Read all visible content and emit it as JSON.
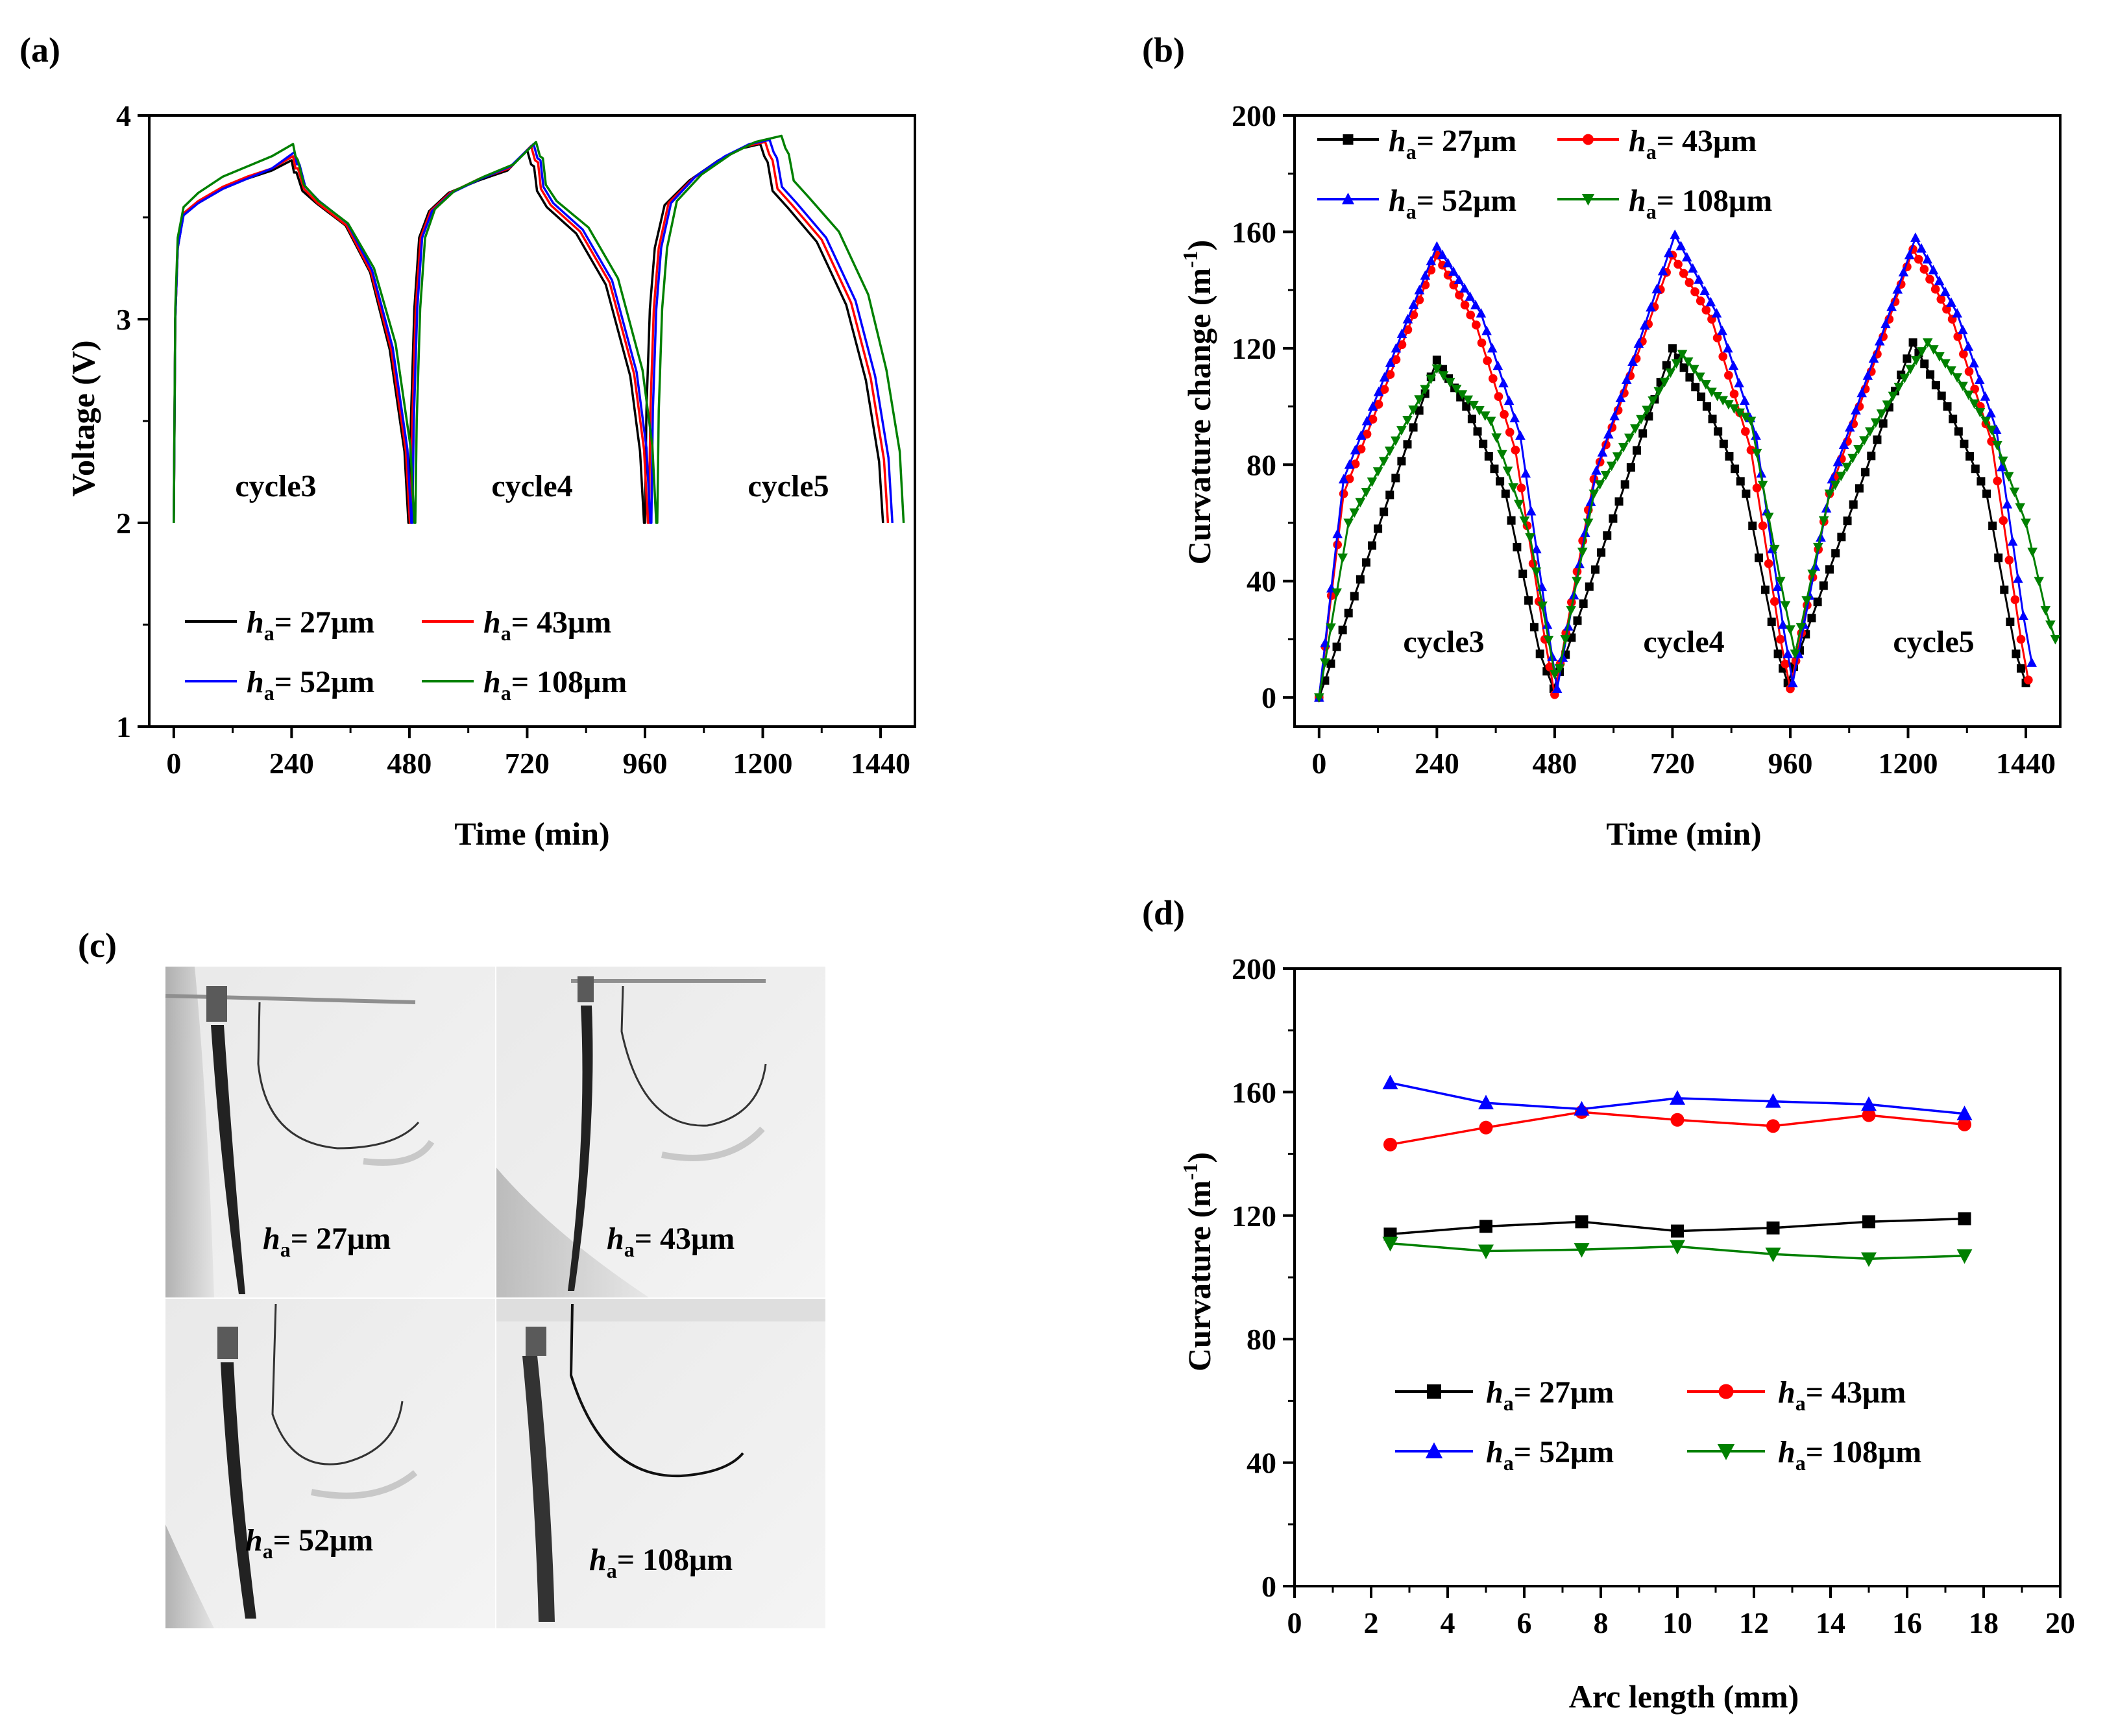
{
  "colors": {
    "h27": "#000000",
    "h43": "#ff0000",
    "h52": "#0000ff",
    "h108": "#008000"
  },
  "chart_data": [
    {
      "id": "a",
      "panel_label": "(a)",
      "type": "line",
      "xlabel": "Time (min)",
      "ylabel": "Voltage (V)",
      "xlim": [
        -50,
        1510
      ],
      "ylim": [
        1,
        4
      ],
      "xticks": [
        0,
        240,
        480,
        720,
        960,
        1200,
        1440
      ],
      "yticks": [
        1,
        2,
        3,
        4
      ],
      "annotations": [
        "cycle3",
        "cycle4",
        "cycle5"
      ],
      "series": [
        {
          "key": "h27",
          "name_prefix": "h",
          "name_sub": "a",
          "name_rest": "= 27μm",
          "color": "#000000",
          "x": [
            0,
            3,
            8,
            20,
            50,
            100,
            150,
            200,
            240,
            245,
            250,
            262,
            290,
            350,
            400,
            440,
            470,
            478,
            480,
            483,
            490,
            500,
            520,
            560,
            620,
            680,
            720,
            728,
            734,
            740,
            760,
            820,
            880,
            930,
            950,
            958,
            960,
            963,
            970,
            980,
            1000,
            1050,
            1110,
            1160,
            1195,
            1203,
            1210,
            1220,
            1250,
            1310,
            1370,
            1410,
            1437,
            1445
          ],
          "y": [
            2.0,
            3.0,
            3.35,
            3.52,
            3.57,
            3.64,
            3.69,
            3.73,
            3.78,
            3.72,
            3.72,
            3.63,
            3.57,
            3.46,
            3.23,
            2.85,
            2.35,
            2.0,
            2.0,
            2.5,
            3.05,
            3.4,
            3.53,
            3.62,
            3.68,
            3.73,
            3.83,
            3.76,
            3.75,
            3.63,
            3.55,
            3.42,
            3.17,
            2.72,
            2.35,
            2.0,
            2.0,
            2.55,
            3.05,
            3.35,
            3.56,
            3.68,
            3.78,
            3.84,
            3.86,
            3.8,
            3.77,
            3.63,
            3.55,
            3.38,
            3.07,
            2.7,
            2.3,
            2.0
          ]
        },
        {
          "key": "h43",
          "name_prefix": "h",
          "name_sub": "a",
          "name_rest": "= 43μm",
          "color": "#ff0000",
          "x": [
            0,
            3,
            8,
            20,
            50,
            100,
            150,
            200,
            243,
            248,
            253,
            265,
            293,
            352,
            402,
            443,
            473,
            481,
            483,
            486,
            493,
            503,
            523,
            563,
            623,
            683,
            728,
            736,
            742,
            748,
            768,
            828,
            888,
            938,
            958,
            966,
            968,
            971,
            978,
            988,
            1008,
            1058,
            1118,
            1168,
            1205,
            1213,
            1220,
            1230,
            1260,
            1320,
            1380,
            1420,
            1447,
            1455
          ],
          "y": [
            2.0,
            3.0,
            3.35,
            3.52,
            3.58,
            3.65,
            3.7,
            3.74,
            3.8,
            3.74,
            3.74,
            3.64,
            3.57,
            3.46,
            3.23,
            2.85,
            2.35,
            2.0,
            2.0,
            2.5,
            3.05,
            3.4,
            3.53,
            3.62,
            3.69,
            3.74,
            3.85,
            3.78,
            3.77,
            3.64,
            3.56,
            3.43,
            3.18,
            2.73,
            2.36,
            2.0,
            2.0,
            2.55,
            3.05,
            3.35,
            3.57,
            3.69,
            3.79,
            3.85,
            3.87,
            3.81,
            3.78,
            3.64,
            3.56,
            3.39,
            3.08,
            2.71,
            2.31,
            2.0
          ]
        },
        {
          "key": "h52",
          "name_prefix": "h",
          "name_sub": "a",
          "name_rest": "= 52μm",
          "color": "#0000ff",
          "x": [
            0,
            3,
            8,
            20,
            50,
            100,
            150,
            200,
            246,
            251,
            256,
            268,
            296,
            354,
            404,
            446,
            476,
            484,
            486,
            489,
            496,
            506,
            526,
            566,
            626,
            686,
            733,
            741,
            747,
            753,
            773,
            833,
            893,
            943,
            963,
            971,
            973,
            976,
            983,
            993,
            1013,
            1063,
            1123,
            1173,
            1214,
            1222,
            1229,
            1239,
            1269,
            1329,
            1389,
            1429,
            1456,
            1464
          ],
          "y": [
            2.0,
            3.0,
            3.35,
            3.51,
            3.57,
            3.64,
            3.69,
            3.74,
            3.82,
            3.76,
            3.76,
            3.65,
            3.58,
            3.47,
            3.24,
            2.86,
            2.36,
            2.0,
            2.0,
            2.5,
            3.05,
            3.4,
            3.53,
            3.62,
            3.69,
            3.75,
            3.86,
            3.79,
            3.78,
            3.65,
            3.57,
            3.44,
            3.19,
            2.74,
            2.37,
            2.0,
            2.0,
            2.55,
            3.05,
            3.35,
            3.57,
            3.7,
            3.8,
            3.86,
            3.88,
            3.82,
            3.79,
            3.65,
            3.57,
            3.4,
            3.09,
            2.72,
            2.32,
            2.0
          ]
        },
        {
          "key": "h108",
          "name_prefix": "h",
          "name_sub": "a",
          "name_rest": "= 108μm",
          "color": "#008000",
          "x": [
            0,
            3,
            8,
            20,
            50,
            100,
            150,
            200,
            243,
            248,
            253,
            265,
            295,
            355,
            408,
            452,
            482,
            490,
            492,
            495,
            502,
            512,
            532,
            572,
            632,
            692,
            738,
            746,
            752,
            758,
            780,
            845,
            905,
            955,
            975,
            983,
            985,
            988,
            995,
            1005,
            1025,
            1075,
            1135,
            1185,
            1238,
            1246,
            1253,
            1263,
            1293,
            1355,
            1415,
            1452,
            1479,
            1487
          ],
          "y": [
            2.0,
            3.05,
            3.4,
            3.55,
            3.62,
            3.7,
            3.75,
            3.8,
            3.86,
            3.8,
            3.78,
            3.66,
            3.58,
            3.47,
            3.25,
            2.88,
            2.38,
            2.0,
            2.0,
            2.5,
            3.05,
            3.4,
            3.54,
            3.63,
            3.7,
            3.76,
            3.87,
            3.8,
            3.79,
            3.66,
            3.58,
            3.45,
            3.2,
            2.75,
            2.38,
            2.0,
            2.0,
            2.55,
            3.05,
            3.35,
            3.58,
            3.71,
            3.81,
            3.87,
            3.9,
            3.84,
            3.81,
            3.68,
            3.6,
            3.43,
            3.12,
            2.75,
            2.35,
            2.0
          ]
        }
      ]
    },
    {
      "id": "b",
      "panel_label": "(b)",
      "type": "line",
      "xlabel": "Time (min)",
      "ylabel_main": "Curvature change (m",
      "ylabel_sup": "-1",
      "ylabel_end": ")",
      "xlim": [
        -50,
        1510
      ],
      "ylim": [
        -10,
        200
      ],
      "xticks": [
        0,
        240,
        480,
        720,
        960,
        1200,
        1440
      ],
      "yticks": [
        0,
        40,
        80,
        120,
        160,
        200
      ],
      "annotations": [
        "cycle3",
        "cycle4",
        "cycle5"
      ],
      "series": [
        {
          "key": "h27",
          "name_prefix": "h",
          "name_sub": "a",
          "name_rest": "= 27μm",
          "color": "#000000",
          "marker": "square",
          "x": [
            0,
            240,
            300,
            380,
            450,
            478,
            720,
            790,
            870,
            935,
            955,
            1210,
            1280,
            1360,
            1420,
            1440
          ],
          "y": [
            0,
            116,
            100,
            70,
            15,
            3,
            120,
            100,
            70,
            15,
            5,
            122,
            100,
            70,
            15,
            5
          ]
        },
        {
          "key": "h43",
          "name_prefix": "h",
          "name_sub": "a",
          "name_rest": "= 43μm",
          "color": "#ff0000",
          "marker": "circle",
          "x": [
            0,
            50,
            240,
            320,
            400,
            460,
            480,
            560,
            720,
            800,
            880,
            940,
            960,
            1040,
            1210,
            1290,
            1370,
            1430,
            1445
          ],
          "y": [
            0,
            70,
            152,
            128,
            85,
            20,
            1,
            75,
            152,
            130,
            85,
            20,
            3,
            70,
            154,
            130,
            88,
            20,
            6
          ]
        },
        {
          "key": "h52",
          "name_prefix": "h",
          "name_sub": "a",
          "name_rest": "= 52μm",
          "color": "#0000ff",
          "marker": "triangle-up",
          "x": [
            0,
            50,
            240,
            330,
            410,
            465,
            485,
            565,
            725,
            810,
            890,
            945,
            965,
            1045,
            1215,
            1300,
            1380,
            1435,
            1452
          ],
          "y": [
            0,
            75,
            155,
            132,
            90,
            25,
            3,
            78,
            159,
            132,
            90,
            25,
            5,
            75,
            158,
            132,
            92,
            28,
            12
          ]
        },
        {
          "key": "h108",
          "name_prefix": "h",
          "name_sub": "a",
          "name_rest": "= 108μm",
          "color": "#008000",
          "marker": "triangle-down",
          "x": [
            0,
            60,
            240,
            280,
            350,
            430,
            480,
            490,
            560,
            740,
            800,
            880,
            940,
            970,
            1040,
            1240,
            1300,
            1370,
            1440,
            1480,
            1500
          ],
          "y": [
            0,
            60,
            113,
            106,
            95,
            55,
            8,
            10,
            70,
            118,
            105,
            95,
            40,
            15,
            70,
            122,
            110,
            92,
            60,
            30,
            20
          ]
        }
      ]
    },
    {
      "id": "d",
      "panel_label": "(d)",
      "type": "line",
      "xlabel": "Arc length (mm)",
      "ylabel_main": "Curvature (m",
      "ylabel_sup": "-1",
      "ylabel_end": ")",
      "xlim": [
        0,
        20
      ],
      "ylim": [
        0,
        200
      ],
      "xticks": [
        0,
        2,
        4,
        6,
        8,
        10,
        12,
        14,
        16,
        18,
        20
      ],
      "yticks": [
        0,
        40,
        80,
        120,
        160,
        200
      ],
      "series": [
        {
          "key": "h27",
          "name_prefix": "h",
          "name_sub": "a",
          "name_rest": "= 27μm",
          "color": "#000000",
          "marker": "square",
          "x": [
            2.5,
            5,
            7.5,
            10,
            12.5,
            15,
            17.5
          ],
          "y": [
            114,
            116.5,
            118,
            115,
            116,
            118,
            119
          ]
        },
        {
          "key": "h43",
          "name_prefix": "h",
          "name_sub": "a",
          "name_rest": "= 43μm",
          "color": "#ff0000",
          "marker": "circle",
          "x": [
            2.5,
            5,
            7.5,
            10,
            12.5,
            15,
            17.5
          ],
          "y": [
            143,
            148.5,
            153.5,
            151,
            149,
            152.5,
            149.5
          ]
        },
        {
          "key": "h52",
          "name_prefix": "h",
          "name_sub": "a",
          "name_rest": "= 52μm",
          "color": "#0000ff",
          "marker": "triangle-up",
          "x": [
            2.5,
            5,
            7.5,
            10,
            12.5,
            15,
            17.5
          ],
          "y": [
            163,
            156.5,
            154.5,
            158,
            157,
            156,
            153
          ]
        },
        {
          "key": "h108",
          "name_prefix": "h",
          "name_sub": "a",
          "name_rest": "= 108μm",
          "color": "#008000",
          "marker": "triangle-down",
          "x": [
            2.5,
            5,
            7.5,
            10,
            12.5,
            15,
            17.5
          ],
          "y": [
            111,
            108.5,
            109,
            110,
            107.5,
            106,
            107
          ]
        }
      ]
    }
  ],
  "photo": {
    "panel_label": "(c)",
    "cells": [
      {
        "prefix": "h",
        "sub": "a",
        "rest": "= 27μm"
      },
      {
        "prefix": "h",
        "sub": "a",
        "rest": "= 43μm"
      },
      {
        "prefix": "h",
        "sub": "a",
        "rest": "= 52μm"
      },
      {
        "prefix": "h",
        "sub": "a",
        "rest": "= 108μm"
      }
    ]
  }
}
